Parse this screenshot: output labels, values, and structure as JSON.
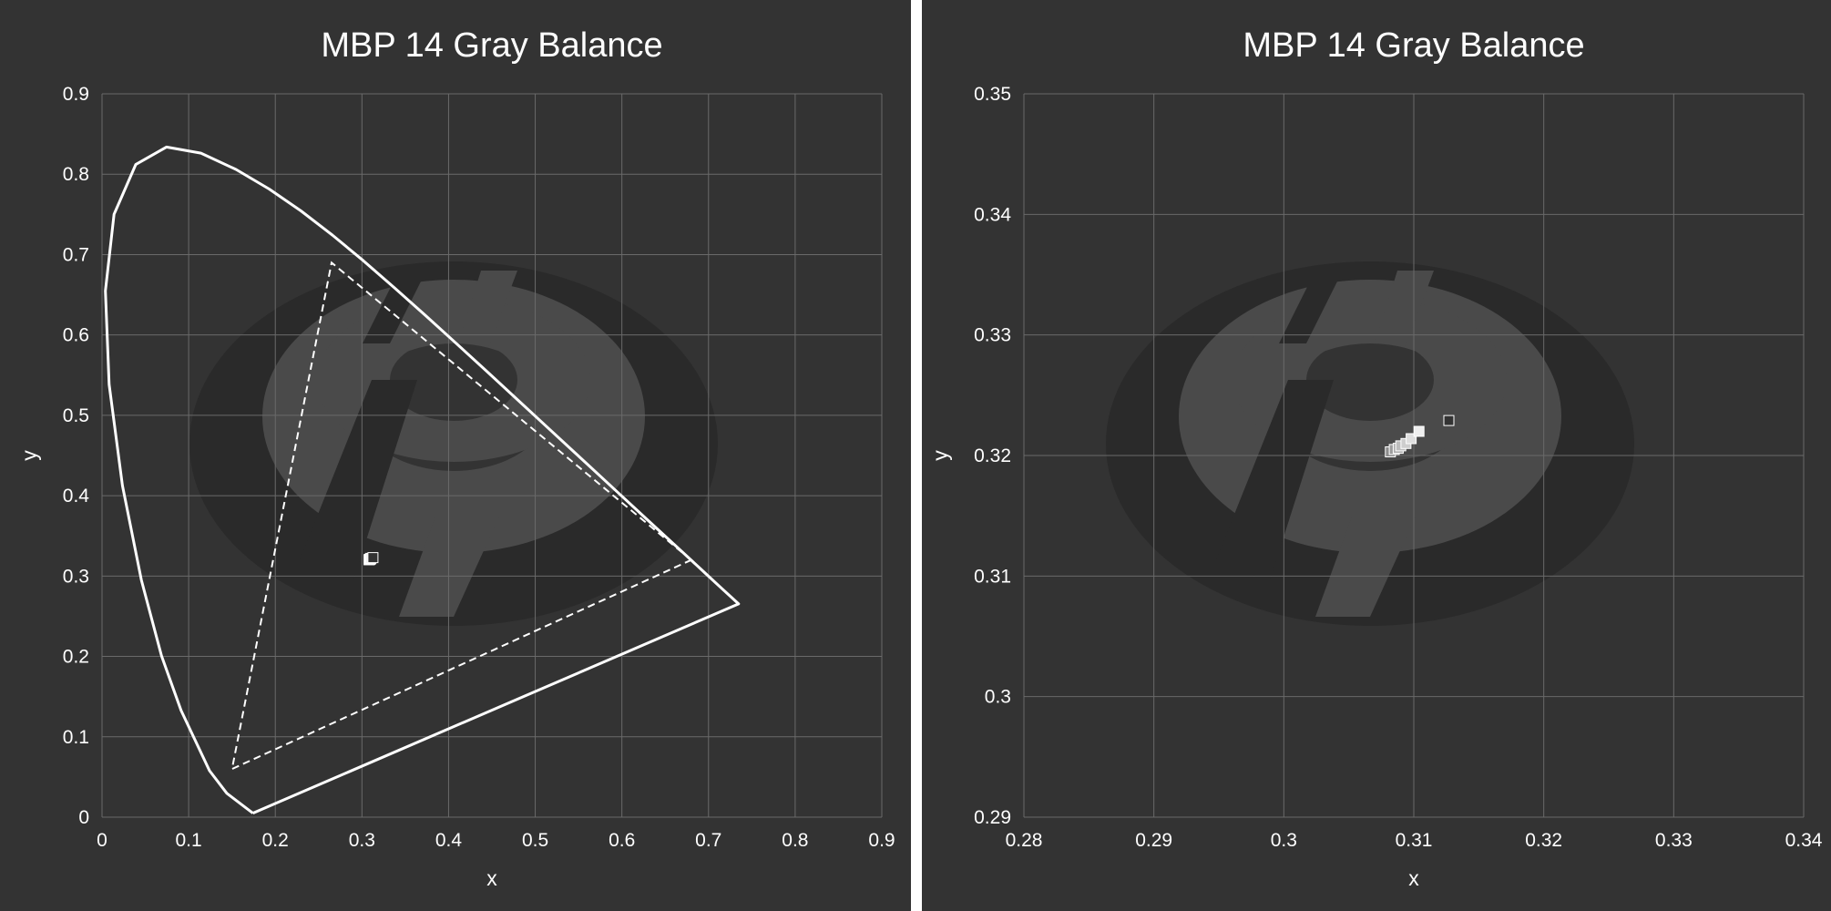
{
  "chart_data": [
    {
      "type": "scatter",
      "title": "MBP 14 Gray Balance",
      "xlabel": "x",
      "ylabel": "y",
      "xlim": [
        0,
        0.9
      ],
      "ylim": [
        0,
        0.9
      ],
      "x_ticks": [
        "0",
        "0.1",
        "0.2",
        "0.3",
        "0.4",
        "0.5",
        "0.6",
        "0.7",
        "0.8",
        "0.9"
      ],
      "y_ticks": [
        "0",
        "0.1",
        "0.2",
        "0.3",
        "0.4",
        "0.5",
        "0.6",
        "0.7",
        "0.8",
        "0.9"
      ],
      "grid": true,
      "spectral_locus": [
        [
          0.1741,
          0.005
        ],
        [
          0.144,
          0.0297
        ],
        [
          0.1241,
          0.0578
        ],
        [
          0.0913,
          0.1327
        ],
        [
          0.0687,
          0.2007
        ],
        [
          0.0454,
          0.295
        ],
        [
          0.0235,
          0.4127
        ],
        [
          0.0082,
          0.5384
        ],
        [
          0.0039,
          0.6548
        ],
        [
          0.0139,
          0.7502
        ],
        [
          0.0389,
          0.812
        ],
        [
          0.0743,
          0.8338
        ],
        [
          0.1142,
          0.8262
        ],
        [
          0.1547,
          0.8059
        ],
        [
          0.1929,
          0.7816
        ],
        [
          0.2296,
          0.7543
        ],
        [
          0.2658,
          0.7243
        ],
        [
          0.3016,
          0.6923
        ],
        [
          0.3373,
          0.6589
        ],
        [
          0.3731,
          0.6245
        ],
        [
          0.4087,
          0.5896
        ],
        [
          0.4441,
          0.5547
        ],
        [
          0.4788,
          0.5202
        ],
        [
          0.5125,
          0.4866
        ],
        [
          0.5448,
          0.4544
        ],
        [
          0.5752,
          0.4242
        ],
        [
          0.6029,
          0.3965
        ],
        [
          0.627,
          0.3725
        ],
        [
          0.6482,
          0.3514
        ],
        [
          0.6658,
          0.334
        ],
        [
          0.6801,
          0.3197
        ],
        [
          0.6915,
          0.3083
        ],
        [
          0.7006,
          0.2993
        ],
        [
          0.714,
          0.2859
        ],
        [
          0.7347,
          0.2653
        ],
        [
          0.1741,
          0.005
        ]
      ],
      "gamut_triangle": [
        [
          0.68,
          0.32
        ],
        [
          0.265,
          0.69
        ],
        [
          0.15,
          0.06
        ]
      ],
      "points": [
        [
          0.3127,
          0.3229
        ],
        [
          0.3104,
          0.322
        ],
        [
          0.3098,
          0.3214
        ],
        [
          0.3094,
          0.321
        ],
        [
          0.309,
          0.3208
        ],
        [
          0.3088,
          0.3206
        ],
        [
          0.3085,
          0.3205
        ],
        [
          0.3082,
          0.3203
        ]
      ]
    },
    {
      "type": "scatter",
      "title": "MBP 14 Gray Balance",
      "xlabel": "x",
      "ylabel": "y",
      "xlim": [
        0.28,
        0.34
      ],
      "ylim": [
        0.29,
        0.35
      ],
      "x_ticks": [
        "0.28",
        "0.29",
        "0.3",
        "0.31",
        "0.32",
        "0.33",
        "0.34"
      ],
      "y_ticks": [
        "0.29",
        "0.3",
        "0.31",
        "0.32",
        "0.33",
        "0.34",
        "0.35"
      ],
      "grid": true,
      "points": [
        [
          0.3127,
          0.3229
        ],
        [
          0.3104,
          0.322
        ],
        [
          0.3098,
          0.3214
        ],
        [
          0.3094,
          0.321
        ],
        [
          0.309,
          0.3208
        ],
        [
          0.3088,
          0.3206
        ],
        [
          0.3085,
          0.3205
        ],
        [
          0.3082,
          0.3203
        ]
      ]
    }
  ]
}
